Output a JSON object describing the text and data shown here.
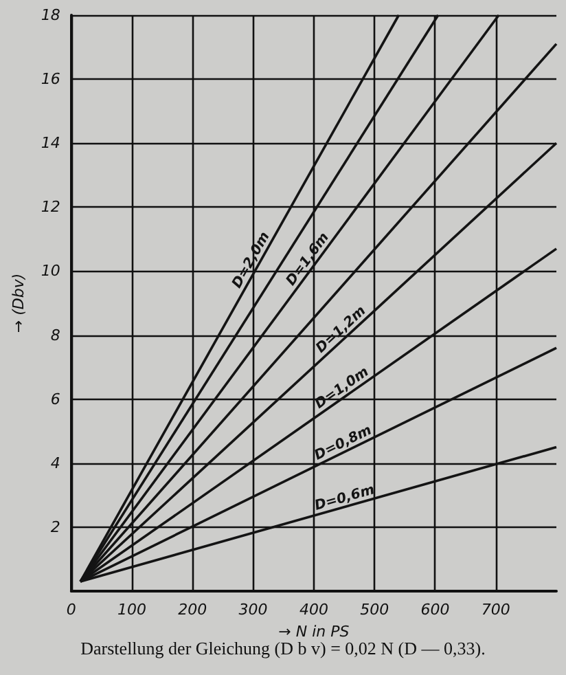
{
  "chart_data": {
    "type": "line",
    "title": "Darstellung der Gleichung (D b v) = 0,02 N (D — 0,33).",
    "xlabel": "→ N in PS",
    "ylabel": "→ (Dbv)",
    "series": [
      {
        "name": "D=2,0m",
        "color": "#141414",
        "x": [
          15,
          540
        ],
        "values": [
          0.3,
          18
        ]
      },
      {
        "color": "#141414",
        "x": [
          15,
          605
        ],
        "values": [
          0.3,
          18
        ]
      },
      {
        "name": "D=1,6m",
        "color": "#141414",
        "x": [
          15,
          705
        ],
        "values": [
          0.3,
          18
        ]
      },
      {
        "color": "#141414",
        "x": [
          15,
          800
        ],
        "values": [
          0.3,
          17.1
        ]
      },
      {
        "name": "D=1,2m",
        "color": "#141414",
        "x": [
          15,
          800
        ],
        "values": [
          0.3,
          14
        ]
      },
      {
        "name": "D=1,0m",
        "color": "#141414",
        "x": [
          15,
          800
        ],
        "values": [
          0.3,
          10.7
        ]
      },
      {
        "name": "D=0,8m",
        "color": "#141414",
        "x": [
          15,
          800
        ],
        "values": [
          0.3,
          7.6
        ]
      },
      {
        "name": "D=0,6m",
        "color": "#141414",
        "x": [
          15,
          800
        ],
        "values": [
          0.3,
          4.5
        ]
      }
    ],
    "xlim": [
      0,
      800
    ],
    "xticks": [
      0,
      100,
      200,
      300,
      400,
      500,
      600,
      700
    ],
    "ylim": [
      0,
      18
    ],
    "yticks": [
      2,
      4,
      6,
      8,
      10,
      12,
      14,
      16,
      18
    ],
    "grid": true,
    "legend": false,
    "marker": "none",
    "line_style": "solid"
  }
}
